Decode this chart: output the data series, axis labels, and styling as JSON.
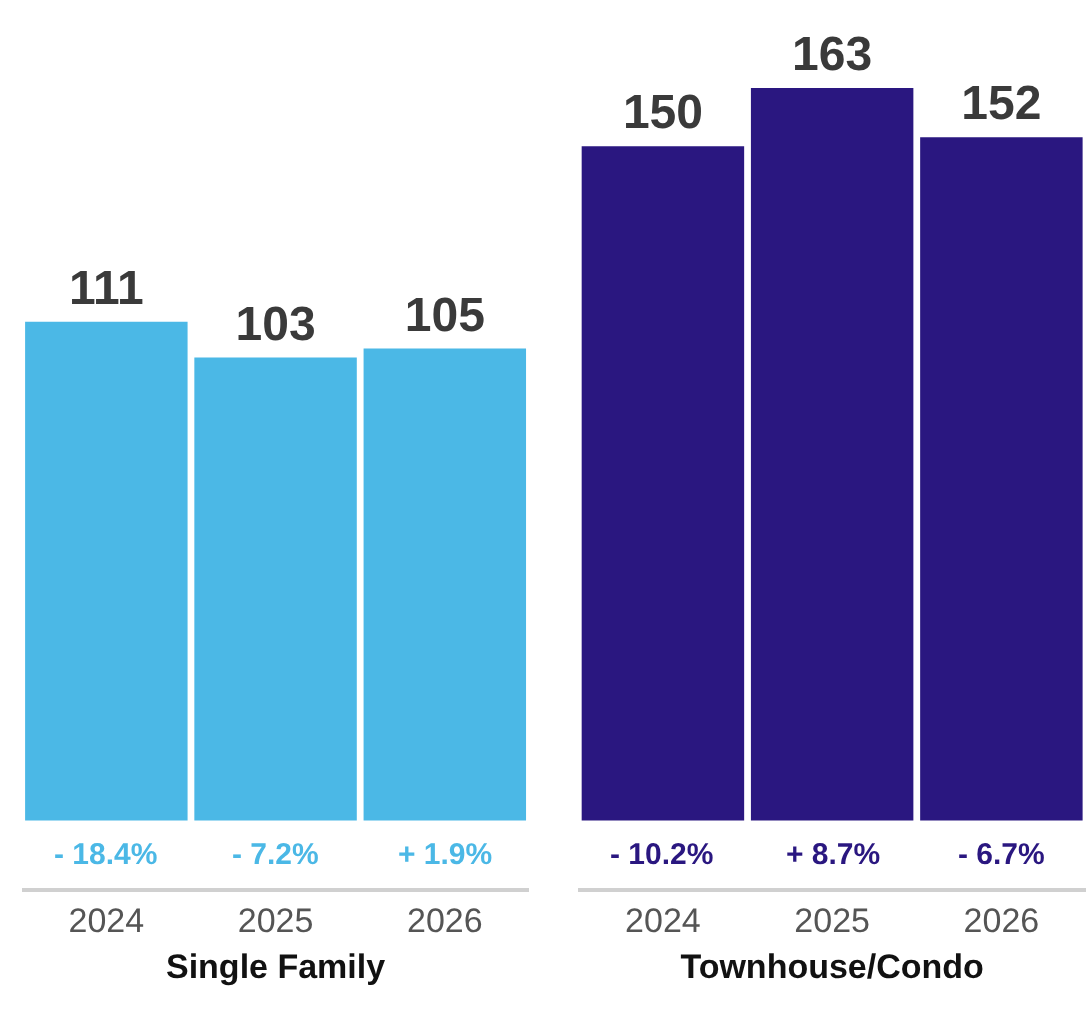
{
  "chart_data": [
    {
      "type": "bar",
      "categories": [
        "2024",
        "2025",
        "2026"
      ],
      "values": [
        111,
        103,
        105
      ],
      "color": "#4bb8e6",
      "xlabel": "Single Family",
      "data_labels": true,
      "tick_labels": "x",
      "annotations": [
        "- 18.4%",
        "- 7.2%",
        "+ 1.9%"
      ]
    },
    {
      "type": "bar",
      "categories": [
        "2024",
        "2025",
        "2026"
      ],
      "values": [
        150,
        163,
        152
      ],
      "color": "#2a1780",
      "xlabel": "Townhouse/Condo",
      "data_labels": true,
      "tick_labels": "x",
      "annotations": [
        "- 10.2%",
        "+ 8.7%",
        "- 6.7%"
      ]
    }
  ]
}
